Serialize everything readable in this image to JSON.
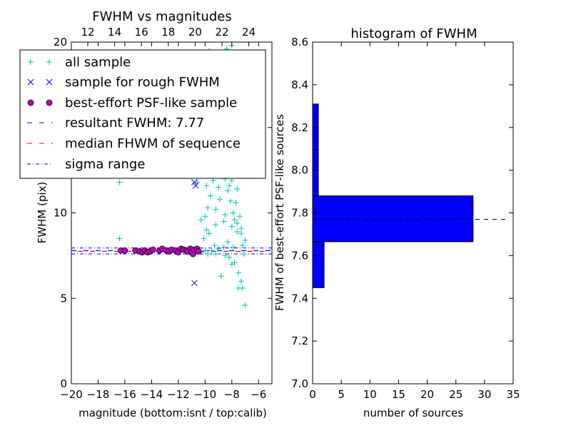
{
  "chart_data": [
    {
      "type": "scatter",
      "title": "FWHM vs magnitudes",
      "xlabel": "magnitude (bottom:isnt / top:calib)",
      "ylabel": "FWHM (pix)",
      "xlim": [
        -20,
        -5
      ],
      "ylim": [
        0,
        20
      ],
      "x_ticks": [
        "−20",
        "−18",
        "−16",
        "−14",
        "−12",
        "−10",
        "−8",
        "−6"
      ],
      "y_ticks": [
        "0",
        "5",
        "10",
        "15",
        "20"
      ],
      "top_ticks": [
        "12",
        "14",
        "16",
        "18",
        "20",
        "22",
        "24"
      ],
      "legend": {
        "position": "top-left",
        "entries": [
          {
            "label": "all sample",
            "marker": "+",
            "color": "#00bfbf"
          },
          {
            "label": "sample for rough FWHM",
            "marker": "x",
            "color": "#0000ff"
          },
          {
            "label": "best-effort PSF-like sample",
            "marker": "o",
            "color": "#bf00bf"
          },
          {
            "label": "resultant FWHM: 7.77",
            "marker": "dashed",
            "color": "#0000ff"
          },
          {
            "label": "median FHWM of sequence",
            "marker": "dashed",
            "color": "#ff0000"
          },
          {
            "label": "sigma range",
            "marker": "dashdot",
            "color": "#0000ff"
          }
        ]
      },
      "lines": {
        "resultant_fwhm": 7.77,
        "median_fwhm": 7.77,
        "sigma_range": [
          7.6,
          7.95
        ]
      },
      "series": [
        {
          "name": "all sample",
          "marker": "+",
          "color": "#00bfbf",
          "points": [
            [
              -16.4,
              8.5
            ],
            [
              -16.4,
              11.8
            ],
            [
              -15.2,
              7.8
            ],
            [
              -14.2,
              7.7
            ],
            [
              -13.5,
              7.7
            ],
            [
              -12.5,
              7.8
            ],
            [
              -11.2,
              7.9
            ],
            [
              -10.3,
              7.7
            ],
            [
              -10.0,
              7.8
            ],
            [
              -9.8,
              7.6
            ],
            [
              -9.5,
              7.8
            ],
            [
              -9.2,
              7.6
            ],
            [
              -9.0,
              7.9
            ],
            [
              -8.8,
              6.3
            ],
            [
              -8.5,
              7.5
            ],
            [
              -8.2,
              7.4
            ],
            [
              -8.0,
              7.0
            ],
            [
              -7.8,
              7.1
            ],
            [
              -7.5,
              6.5
            ],
            [
              -7.3,
              6.0
            ],
            [
              -7.2,
              5.6
            ],
            [
              -7.0,
              4.6
            ],
            [
              -7.5,
              5.6
            ],
            [
              -7.1,
              7.6
            ],
            [
              -7.0,
              8.4
            ],
            [
              -7.3,
              8.8
            ],
            [
              -7.6,
              9.4
            ],
            [
              -7.9,
              10.0
            ],
            [
              -8.1,
              10.7
            ],
            [
              -8.3,
              11.3
            ],
            [
              -8.5,
              12.0
            ],
            [
              -8.7,
              12.7
            ],
            [
              -8.9,
              13.2
            ],
            [
              -9.1,
              13.8
            ],
            [
              -9.4,
              11.9
            ],
            [
              -9.6,
              11.0
            ],
            [
              -9.8,
              10.3
            ],
            [
              -10.0,
              9.8
            ],
            [
              -10.3,
              9.6
            ],
            [
              -9.9,
              9.0
            ],
            [
              -9.2,
              9.3
            ],
            [
              -8.6,
              9.5
            ],
            [
              -8.0,
              9.2
            ],
            [
              -7.6,
              8.9
            ],
            [
              -7.4,
              9.8
            ],
            [
              -7.7,
              10.6
            ],
            [
              -8.2,
              11.6
            ],
            [
              -8.8,
              12.9
            ],
            [
              -7.5,
              12.3
            ],
            [
              -7.8,
              13.5
            ],
            [
              -8.4,
              13.9
            ],
            [
              -9.0,
              11.5
            ],
            [
              -9.5,
              12.3
            ],
            [
              -9.7,
              8.8
            ],
            [
              -10.1,
              8.5
            ],
            [
              -8.3,
              8.3
            ],
            [
              -7.9,
              8.0
            ],
            [
              -7.2,
              8.1
            ],
            [
              -8.6,
              8.0
            ],
            [
              -9.3,
              8.1
            ],
            [
              -10.6,
              11.8
            ],
            [
              -9.9,
              11.6
            ],
            [
              -8.0,
              11.9
            ],
            [
              -7.9,
              12.8
            ],
            [
              -7.6,
              11.4
            ],
            [
              -8.9,
              10.8
            ],
            [
              -9.2,
              10.2
            ],
            [
              -8.5,
              9.9
            ],
            [
              -7.8,
              9.6
            ],
            [
              -7.3,
              9.1
            ],
            [
              -8.4,
              19.6
            ],
            [
              -9.7,
              19.5
            ],
            [
              -8.0,
              19.8
            ],
            [
              -8.1,
              16.5
            ],
            [
              -7.4,
              14.5
            ]
          ]
        },
        {
          "name": "sample for rough FWHM",
          "marker": "x",
          "color": "#0000ff",
          "points": [
            [
              -10.8,
              11.8
            ],
            [
              -10.7,
              11.6
            ],
            [
              -10.8,
              5.9
            ],
            [
              -10.6,
              7.8
            ],
            [
              -11.0,
              7.7
            ]
          ]
        },
        {
          "name": "best-effort PSF-like sample",
          "marker": "o",
          "color": "#bf00bf",
          "points": [
            [
              -16.3,
              7.8
            ],
            [
              -16.0,
              7.8
            ],
            [
              -15.2,
              7.8
            ],
            [
              -14.9,
              7.75
            ],
            [
              -14.7,
              7.7
            ],
            [
              -14.5,
              7.8
            ],
            [
              -14.3,
              7.7
            ],
            [
              -14.1,
              7.75
            ],
            [
              -13.9,
              7.85
            ],
            [
              -13.4,
              7.8
            ],
            [
              -13.2,
              7.9
            ],
            [
              -12.9,
              7.8
            ],
            [
              -12.7,
              7.75
            ],
            [
              -12.5,
              7.85
            ],
            [
              -12.2,
              7.8
            ],
            [
              -12.0,
              7.7
            ],
            [
              -11.8,
              7.9
            ],
            [
              -11.6,
              7.85
            ],
            [
              -11.4,
              7.8
            ],
            [
              -11.3,
              7.75
            ],
            [
              -11.1,
              7.9
            ],
            [
              -11.0,
              7.7
            ],
            [
              -10.9,
              7.6
            ],
            [
              -10.8,
              7.85
            ],
            [
              -10.6,
              7.9
            ],
            [
              -10.5,
              7.75
            ]
          ]
        }
      ]
    },
    {
      "type": "bar",
      "orientation": "horizontal",
      "title": "histogram of FWHM",
      "xlabel": "number of sources",
      "ylabel": "FWHM of best-effort PSF-like sources",
      "xlim": [
        0,
        35
      ],
      "ylim": [
        7.0,
        8.6
      ],
      "x_ticks": [
        "0",
        "5",
        "10",
        "15",
        "20",
        "25",
        "30",
        "35"
      ],
      "y_ticks": [
        "7.0",
        "7.2",
        "7.4",
        "7.6",
        "7.8",
        "8.0",
        "8.2",
        "8.4",
        "8.6"
      ],
      "color": "#0000ff",
      "bins": [
        {
          "from": 7.45,
          "to": 7.665,
          "count": 2
        },
        {
          "from": 7.665,
          "to": 7.88,
          "count": 28
        },
        {
          "from": 7.88,
          "to": 8.095,
          "count": 1
        },
        {
          "from": 8.095,
          "to": 8.31,
          "count": 1
        }
      ],
      "reference_line": 7.77
    }
  ]
}
